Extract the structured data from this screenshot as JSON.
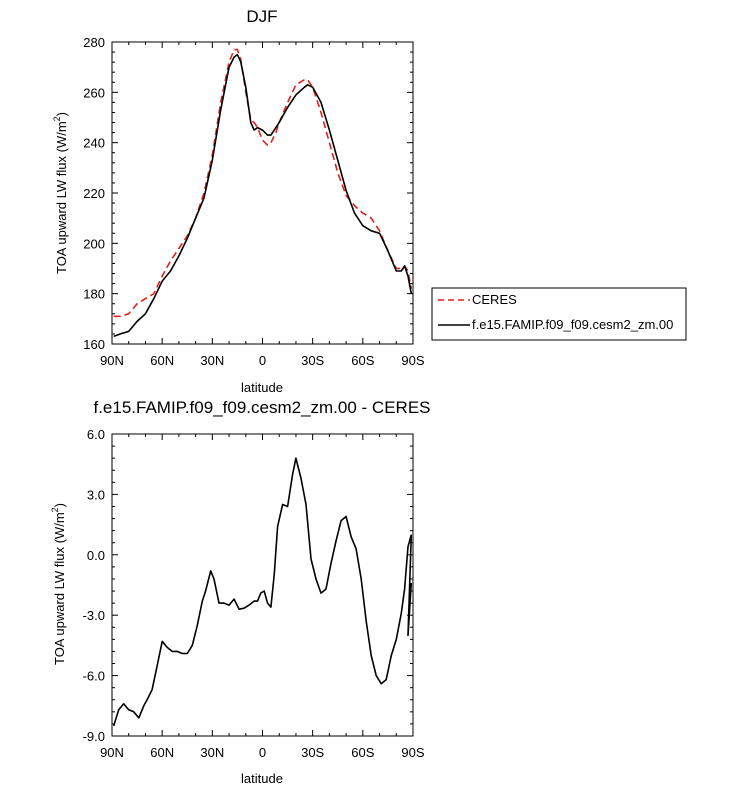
{
  "chart_data": [
    {
      "type": "line",
      "title": "DJF",
      "xlabel": "latitude",
      "ylabel": "TOA upward LW flux (W/m",
      "ylabel_sup": "2",
      "ylabel_close": ")",
      "xlim": [
        90,
        -90
      ],
      "ylim": [
        160,
        280
      ],
      "xticks": [
        90,
        60,
        30,
        0,
        -30,
        -60,
        -90
      ],
      "xtick_labels": [
        "90N",
        "60N",
        "30N",
        "0",
        "30S",
        "60S",
        "90S"
      ],
      "yticks": [
        160,
        180,
        200,
        220,
        240,
        260,
        280
      ],
      "ytick_labels": [
        "160",
        "180",
        "200",
        "220",
        "240",
        "260",
        "280"
      ],
      "legend_position": "right",
      "series": [
        {
          "name": "CERES",
          "color": "#e0201b",
          "dash": "dashed",
          "x": [
            89,
            85,
            80,
            75,
            70,
            65,
            60,
            55,
            50,
            45,
            40,
            35,
            30,
            25,
            20,
            17,
            15,
            13,
            10,
            7,
            5,
            3,
            0,
            -3,
            -5,
            -8,
            -10,
            -15,
            -20,
            -25,
            -27,
            -30,
            -35,
            -40,
            -45,
            -50,
            -55,
            -60,
            -65,
            -70,
            -75,
            -80,
            -83,
            -85,
            -87,
            -89
          ],
          "values": [
            171,
            171,
            172,
            176,
            178,
            180,
            187,
            193,
            198,
            203,
            210,
            220,
            235,
            256,
            272,
            277,
            277,
            273,
            260,
            249,
            248,
            246,
            241,
            239,
            240,
            244,
            248,
            256,
            263,
            265,
            265,
            262,
            252,
            240,
            228,
            219,
            215,
            212,
            210,
            205,
            197,
            190,
            190,
            191,
            189,
            182
          ]
        },
        {
          "name": "f.e15.FAMIP.f09_f09.cesm2_zm.00",
          "color": "#000000",
          "dash": "solid",
          "x": [
            89,
            85,
            80,
            75,
            70,
            65,
            60,
            55,
            50,
            45,
            40,
            35,
            30,
            25,
            20,
            17,
            15,
            13,
            10,
            7,
            5,
            3,
            0,
            -3,
            -5,
            -8,
            -10,
            -15,
            -20,
            -25,
            -27,
            -30,
            -35,
            -40,
            -45,
            -50,
            -55,
            -60,
            -65,
            -70,
            -75,
            -80,
            -83,
            -85,
            -87,
            -89
          ],
          "values": [
            163,
            164,
            165,
            169,
            172,
            178,
            185,
            189,
            195,
            202,
            210,
            218,
            233,
            253,
            270,
            274,
            275,
            272,
            262,
            248,
            245,
            246,
            245,
            243,
            243,
            246,
            248,
            254,
            259,
            262,
            263,
            262,
            256,
            245,
            233,
            221,
            212,
            207,
            205,
            204,
            197,
            189,
            189,
            191,
            187,
            180
          ]
        }
      ]
    },
    {
      "type": "line",
      "title": "f.e15.FAMIP.f09_f09.cesm2_zm.00 - CERES",
      "xlabel": "latitude",
      "ylabel": "TOA upward LW flux (W/m",
      "ylabel_sup": "2",
      "ylabel_close": ")",
      "xlim": [
        90,
        -90
      ],
      "ylim": [
        -9,
        6
      ],
      "xticks": [
        90,
        60,
        30,
        0,
        -30,
        -60,
        -90
      ],
      "xtick_labels": [
        "90N",
        "60N",
        "30N",
        "0",
        "30S",
        "60S",
        "90S"
      ],
      "yticks": [
        -9,
        -6,
        -3,
        0,
        3,
        6
      ],
      "ytick_labels": [
        "-9.0",
        "-6.0",
        "-3.0",
        "0.0",
        "3.0",
        "6.0"
      ],
      "series": [
        {
          "color": "#000000",
          "dash": "solid",
          "x": [
            89,
            86,
            83,
            80,
            77,
            74,
            71,
            69,
            66,
            63,
            60,
            57,
            54,
            51,
            48,
            45,
            42,
            39,
            36,
            34,
            31,
            29,
            26,
            23,
            20,
            17,
            14,
            11,
            8,
            5,
            3,
            1,
            -1,
            -3,
            -5,
            -7,
            -9,
            -12,
            -15,
            -18,
            -20,
            -23,
            -26,
            -29,
            -32,
            -35,
            -38,
            -41,
            -44,
            -47,
            -50,
            -53,
            -56,
            -59,
            -62,
            -65,
            -68,
            -71,
            -74,
            -77,
            -80,
            -83,
            -85,
            -87,
            -89
          ],
          "values": [
            -8.5,
            -7.7,
            -7.4,
            -7.7,
            -7.8,
            -8.1,
            -7.5,
            -7.2,
            -6.7,
            -5.5,
            -4.3,
            -4.6,
            -4.8,
            -4.8,
            -4.9,
            -4.9,
            -4.5,
            -3.5,
            -2.3,
            -1.8,
            -0.8,
            -1.2,
            -2.4,
            -2.4,
            -2.5,
            -2.2,
            -2.7,
            -2.65,
            -2.5,
            -2.3,
            -2.3,
            -1.9,
            -1.8,
            -2.4,
            -2.6,
            -1.0,
            1.4,
            2.5,
            2.4,
            4.0,
            4.8,
            3.8,
            2.5,
            -0.2,
            -1.2,
            -1.9,
            -1.7,
            -0.4,
            0.7,
            1.7,
            1.9,
            0.9,
            0.3,
            -1.2,
            -3.3,
            -5.0,
            -6.0,
            -6.4,
            -6.2,
            -5.0,
            -4.2,
            -2.9,
            -1.7,
            0.4,
            1.0
          ]
        }
      ],
      "tail": {
        "x": [
          -87,
          -89
        ],
        "values": [
          -4.0,
          -1.4
        ]
      }
    }
  ]
}
